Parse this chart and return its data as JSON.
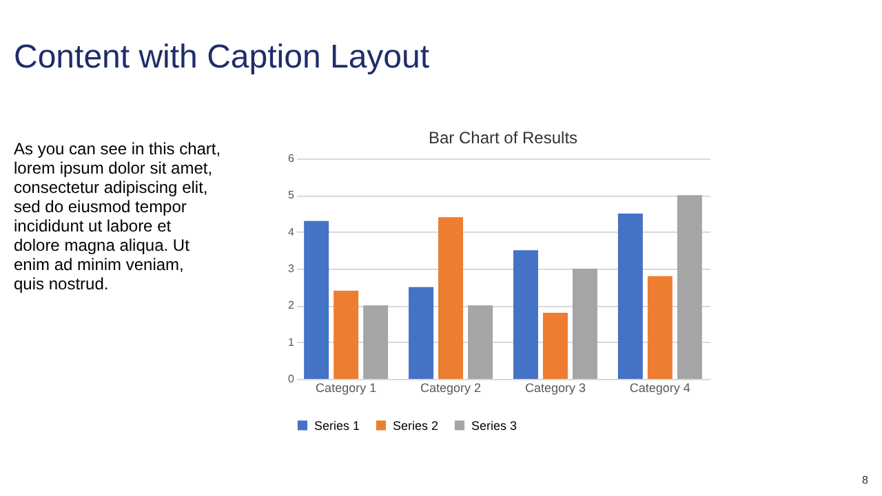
{
  "chart_data": {
    "type": "bar",
    "title": "Bar Chart of Results",
    "categories": [
      "Category 1",
      "Category 2",
      "Category 3",
      "Category 4"
    ],
    "series": [
      {
        "name": "Series 1",
        "color": "#4472c4",
        "values": [
          4.3,
          2.5,
          3.5,
          4.5
        ]
      },
      {
        "name": "Series 2",
        "color": "#ed7d31",
        "values": [
          2.4,
          4.4,
          1.8,
          2.8
        ]
      },
      {
        "name": "Series 3",
        "color": "#a5a5a5",
        "values": [
          2,
          2,
          3,
          5
        ]
      }
    ],
    "ylim": [
      0,
      6
    ],
    "yticks": [
      0,
      1,
      2,
      3,
      4,
      5,
      6
    ],
    "grid": "y",
    "legend": "bottom",
    "annotations": [
      "Content with Caption Layout",
      "As you can see in this chart,\nlorem ipsum dolor sit amet,\nconsectetur adipiscing elit,\nsed do eiusmod tempor\nincididunt ut labore et\ndolore magna aliqua. Ut\nenim ad minim veniam,\nquis nostrud.",
      "8"
    ]
  }
}
